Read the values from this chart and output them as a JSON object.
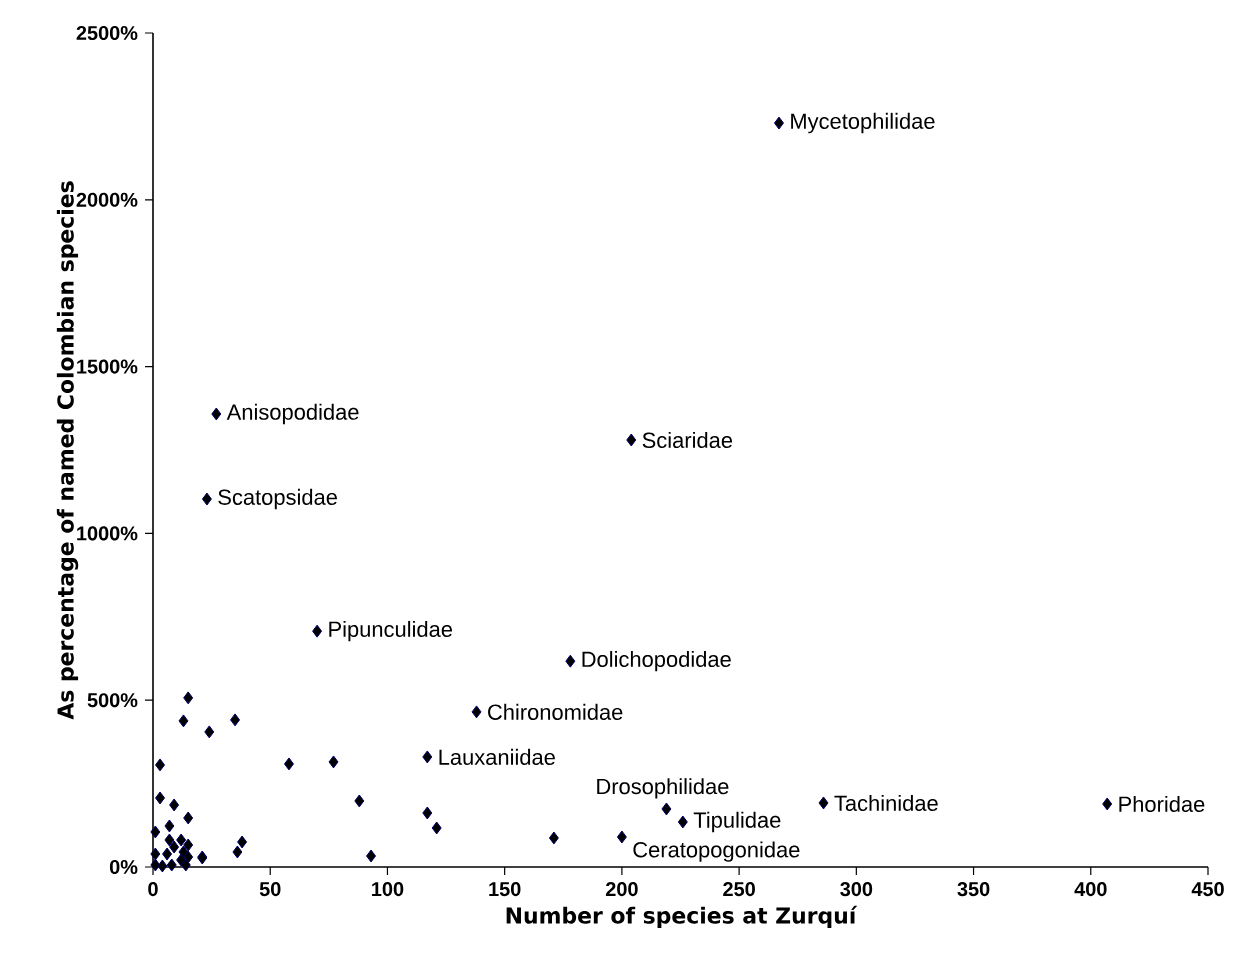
{
  "chart_data": {
    "type": "scatter",
    "xlabel": "Number of species at Zurquí",
    "ylabel": "As percentage of  named Colombian species",
    "x": [
      267,
      27,
      204,
      23,
      70,
      178,
      138,
      117,
      219,
      286,
      407,
      226,
      200,
      15,
      13,
      24,
      35,
      3,
      58,
      77,
      88,
      93,
      3,
      9,
      15,
      7,
      1,
      38,
      36,
      21,
      7,
      12,
      9,
      15,
      1,
      6,
      13,
      15,
      1,
      4,
      8,
      12,
      14,
      21,
      117,
      121,
      171
    ],
    "values": [
      2230,
      1358,
      1280,
      1103,
      707,
      617,
      465,
      330,
      174,
      192,
      189,
      135,
      90,
      507,
      438,
      405,
      441,
      306,
      309,
      315,
      198,
      33,
      207,
      186,
      147,
      123,
      105,
      75,
      45,
      30,
      81,
      81,
      60,
      66,
      39,
      39,
      45,
      30,
      6,
      3,
      6,
      21,
      6,
      27,
      162,
      117,
      87
    ],
    "color": "#000000",
    "marker": "diamond",
    "xlim": [
      0,
      450
    ],
    "ylim": [
      0,
      2500
    ],
    "xticks": [
      0,
      50,
      100,
      150,
      200,
      250,
      300,
      350,
      400,
      450
    ],
    "yticks": [
      {
        "value": 0,
        "label": "0%"
      },
      {
        "value": 500,
        "label": "500%"
      },
      {
        "value": 1000,
        "label": "1000%"
      },
      {
        "value": 1500,
        "label": "1500%"
      },
      {
        "value": 2000,
        "label": "2000%"
      },
      {
        "value": 2500,
        "label": "2500%"
      }
    ],
    "grid": false,
    "annotations": [
      {
        "text": "Mycetophilidae",
        "x": 267,
        "y": 2230
      },
      {
        "text": "Anisopodidae",
        "x": 27,
        "y": 1358
      },
      {
        "text": "Sciaridae",
        "x": 204,
        "y": 1280
      },
      {
        "text": "Scatopsidae",
        "x": 23,
        "y": 1103
      },
      {
        "text": "Pipunculidae",
        "x": 70,
        "y": 707
      },
      {
        "text": "Dolichopodidae",
        "x": 178,
        "y": 617
      },
      {
        "text": "Chironomidae",
        "x": 138,
        "y": 465
      },
      {
        "text": "Lauxaniidae",
        "x": 117,
        "y": 330
      },
      {
        "text": "Drosophilidae",
        "x": 219,
        "y": 174
      },
      {
        "text": "Tachinidae",
        "x": 286,
        "y": 192
      },
      {
        "text": "Phoridae",
        "x": 407,
        "y": 189
      },
      {
        "text": "Tipulidae",
        "x": 226,
        "y": 135
      },
      {
        "text": "Ceratopogonidae",
        "x": 200,
        "y": 90
      }
    ]
  }
}
